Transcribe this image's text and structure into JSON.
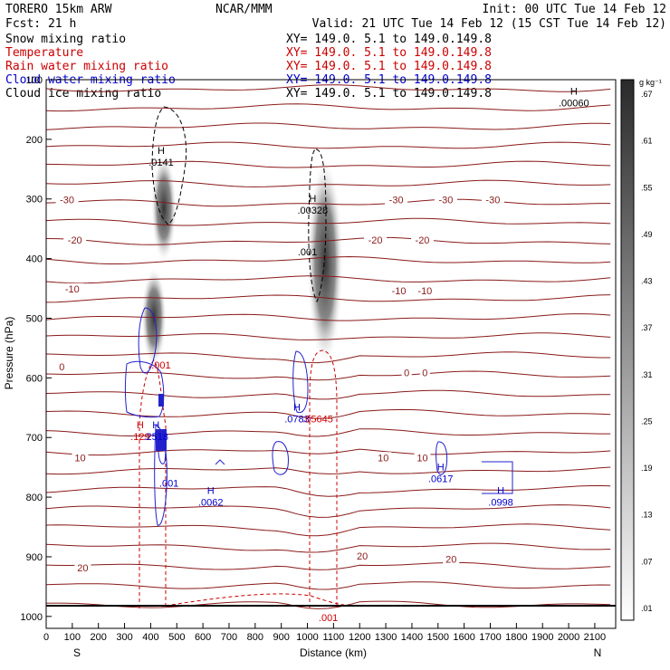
{
  "header": {
    "model": "TORERO  15km ARW",
    "org": "NCAR/MMM",
    "init": "Init: 00 UTC Tue 14 Feb 12",
    "fcst": "Fcst:   21 h",
    "valid": "Valid: 21 UTC Tue 14 Feb 12 (15 CST Tue 14 Feb 12)"
  },
  "fields": [
    {
      "name": "Snow mixing ratio",
      "xy": "XY= 149.0.  5.1 to 149.0.149.8",
      "color": "#000000"
    },
    {
      "name": "Temperature",
      "xy": "XY= 149.0.  5.1 to 149.0.149.8",
      "color": "#cc0000"
    },
    {
      "name": "Rain water mixing ratio",
      "xy": "XY= 149.0.  5.1 to 149.0.149.8",
      "color": "#cc0000"
    },
    {
      "name": "Cloud water mixing ratio",
      "xy": "XY= 149.0.  5.1 to 149.0.149.8",
      "color": "#0000cc"
    },
    {
      "name": "Cloud ice mixing ratio",
      "xy": "XY= 149.0.  5.1 to 149.0.149.8",
      "color": "#000000"
    }
  ],
  "colorbar": {
    "unit": "g kg⁻¹",
    "labels": [
      ".01",
      ".07",
      ".13",
      ".19",
      ".25",
      ".31",
      ".37",
      ".43",
      ".49",
      ".55",
      ".61",
      ".67"
    ]
  },
  "chart_data": {
    "type": "contour",
    "xlabel": "Distance (km)",
    "ylabel": "Pressure (hPa)",
    "xlim": [
      0,
      2180
    ],
    "ylim": [
      1020,
      100
    ],
    "xticks": [
      0,
      100,
      200,
      300,
      400,
      500,
      600,
      700,
      800,
      900,
      1000,
      1100,
      1200,
      1300,
      1400,
      1500,
      1600,
      1700,
      1800,
      1900,
      2000,
      2100
    ],
    "yticks": [
      100,
      200,
      300,
      400,
      500,
      600,
      700,
      800,
      900,
      1000
    ],
    "ytick_labels": [
      "100",
      "200",
      "300",
      "400",
      "500",
      "600",
      "700",
      "800",
      "900",
      "1000"
    ],
    "left_end": "S",
    "right_end": "N",
    "temperature_contour_labels": [
      {
        "text": "-30",
        "x": 80,
        "p": 303
      },
      {
        "text": "-30",
        "x": 1340,
        "p": 303
      },
      {
        "text": "-30",
        "x": 1530,
        "p": 303
      },
      {
        "text": "-30",
        "x": 1710,
        "p": 303
      },
      {
        "text": "-20",
        "x": 110,
        "p": 370
      },
      {
        "text": "-20",
        "x": 1260,
        "p": 370
      },
      {
        "text": "-20",
        "x": 1440,
        "p": 370
      },
      {
        "text": "-10",
        "x": 100,
        "p": 452
      },
      {
        "text": "-10",
        "x": 1350,
        "p": 455
      },
      {
        "text": "-10",
        "x": 1450,
        "p": 455
      },
      {
        "text": "0",
        "x": 60,
        "p": 583
      },
      {
        "text": "0",
        "x": 1380,
        "p": 593
      },
      {
        "text": "0",
        "x": 1450,
        "p": 593
      },
      {
        "text": "10",
        "x": 130,
        "p": 735
      },
      {
        "text": "10",
        "x": 1290,
        "p": 735
      },
      {
        "text": "10",
        "x": 1440,
        "p": 735
      },
      {
        "text": "20",
        "x": 140,
        "p": 920
      },
      {
        "text": "20",
        "x": 1210,
        "p": 900
      },
      {
        "text": "20",
        "x": 1550,
        "p": 905
      }
    ],
    "maxima": [
      {
        "mark": "H",
        "value": ".0141",
        "x": 440,
        "p": 240,
        "color": "#000000"
      },
      {
        "mark": "H",
        "value": ".00328",
        "x": 1020,
        "p": 320,
        "color": "#000000"
      },
      {
        "mark": "",
        "value": ".001",
        "x": 1000,
        "p": 390,
        "color": "#000000"
      },
      {
        "mark": "H",
        "value": ".00060",
        "x": 2020,
        "p": 140,
        "color": "#000000"
      },
      {
        "mark": "",
        "value": ".001",
        "x": 440,
        "p": 580,
        "color": "#cc0000"
      },
      {
        "mark": "H",
        "value": ".0783",
        "x": 960,
        "p": 670,
        "color": "#0000cc"
      },
      {
        "mark": "",
        "value": ".05645",
        "x": 1040,
        "p": 670,
        "color": "#cc0000"
      },
      {
        "mark": "H",
        "value": ".129",
        "x": 360,
        "p": 700,
        "color": "#cc0000"
      },
      {
        "mark": "H",
        "value": ".2518",
        "x": 420,
        "p": 700,
        "color": "#0000cc"
      },
      {
        "mark": "",
        "value": ".001",
        "x": 470,
        "p": 778,
        "color": "#0000cc"
      },
      {
        "mark": "H",
        "value": ".0062",
        "x": 630,
        "p": 810,
        "color": "#0000cc"
      },
      {
        "mark": "H",
        "value": ".0617",
        "x": 1510,
        "p": 770,
        "color": "#0000cc"
      },
      {
        "mark": "H",
        "value": ".0998",
        "x": 1740,
        "p": 810,
        "color": "#0000cc"
      },
      {
        "mark": "",
        "value": ".001",
        "x": 1080,
        "p": 1003,
        "color": "#cc0000"
      }
    ]
  }
}
